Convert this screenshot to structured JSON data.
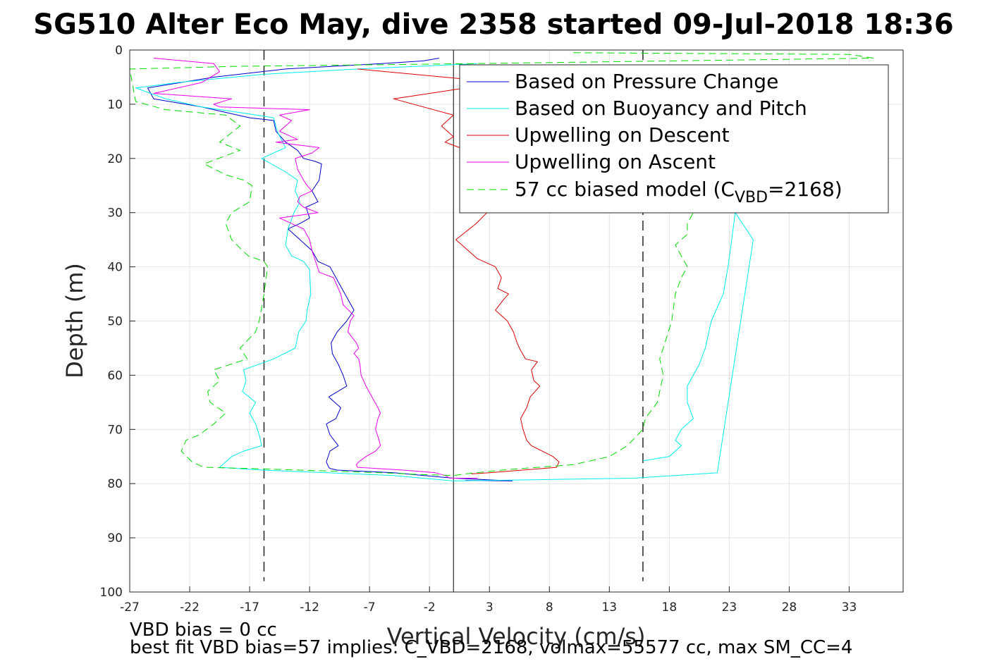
{
  "chart_data": {
    "type": "line",
    "title": "SG510 Alter Eco May, dive 2358 started 09-Jul-2018 18:36",
    "xlabel": "Vertical Velocity (cm/s)",
    "ylabel": "Depth (m)",
    "xlim": [
      -27,
      37.5
    ],
    "ylim": [
      0,
      100
    ],
    "y_reversed": true,
    "grid": true,
    "xticks": [
      -27,
      -22,
      -17,
      -12,
      -7,
      -2,
      3,
      8,
      13,
      18,
      23,
      28,
      33
    ],
    "yticks": [
      0,
      10,
      20,
      30,
      40,
      50,
      60,
      70,
      80,
      90,
      100
    ],
    "legend_position": "top-right",
    "zero_line_x": 0,
    "reference_lines_x": [
      -15.8,
      15.8
    ],
    "series": [
      {
        "name": "Based on Pressure Change",
        "color": "#0000cc",
        "dash": "solid",
        "x": [
          -1.2,
          -2.5,
          -6,
          -14,
          -20,
          -25.5,
          -25,
          -21,
          -17,
          -15,
          -14.8,
          -14,
          -13,
          -12.5,
          -11.6,
          -11,
          -11.2,
          -11.8,
          -11.3,
          -12.3,
          -12,
          -12.8,
          -13.8,
          -12.8,
          -11.8,
          -11.3,
          -10.3,
          -9.8,
          -9.3,
          -8.8,
          -8.3,
          -8.9,
          -9.7,
          -10.2,
          -10.1,
          -9.6,
          -9.2,
          -8.9,
          -10.4,
          -9.4,
          -9.8,
          -10.6,
          -10.3,
          -9.6,
          -10.3,
          -10.6,
          -10.4,
          -10.3,
          -9.7,
          -5,
          0,
          4.9,
          1
        ],
        "y": [
          1.5,
          2,
          2.5,
          3.5,
          5,
          7,
          9,
          10.5,
          12.5,
          13,
          15,
          17,
          18.5,
          20,
          20.5,
          21,
          24,
          26,
          28,
          29,
          31,
          32,
          33,
          35,
          37,
          39,
          40,
          42,
          44,
          46,
          48,
          50,
          52,
          54,
          56,
          58,
          60,
          62,
          64,
          66,
          68,
          69,
          71,
          73,
          74,
          76,
          77,
          77.2,
          77.5,
          78,
          79,
          79.5,
          79.4
        ]
      },
      {
        "name": "Based on Buoyancy and Pitch",
        "color": "#00eeee",
        "dash": "solid",
        "x": [
          2,
          -8,
          -16,
          -23,
          -26.5,
          -24,
          -21,
          -17,
          -15,
          -14.7,
          -14,
          -16,
          -14,
          -13,
          -13.2,
          -12.8,
          -13.3,
          -13.8,
          -14,
          -13.5,
          -12.5,
          -12,
          -11.9,
          -12.2,
          -12.3,
          -12.9,
          -13.2,
          -15,
          -17.5,
          -17.3,
          -17.6,
          -16.5,
          -17,
          -16.5,
          -16.2,
          -16,
          -17.5,
          -18.5,
          -19.5,
          -16,
          -5,
          0,
          15,
          22,
          25,
          23.5,
          22.9,
          22.5,
          21.5,
          21,
          20.5,
          20,
          19.5,
          19.5,
          20,
          19,
          18.5,
          19,
          18,
          15.8
        ],
        "y": [
          2.5,
          3.5,
          4.5,
          6,
          7,
          9,
          10.5,
          11.8,
          12.5,
          15,
          18,
          20,
          22.5,
          24,
          26,
          28,
          30,
          33,
          36,
          38,
          39,
          40.5,
          45,
          48,
          50,
          52,
          55,
          57,
          59,
          61,
          63,
          65,
          67,
          69,
          71,
          73,
          74,
          75,
          77,
          77.5,
          78.5,
          79.5,
          79,
          78,
          35,
          30,
          40,
          45,
          50,
          55,
          58,
          60,
          62,
          65,
          68,
          70,
          72,
          73,
          75,
          75.8
        ]
      },
      {
        "name": "Upwelling on Descent",
        "color": "#dd0000",
        "dash": "solid",
        "x": [
          -8,
          4,
          -5,
          0,
          -1,
          0,
          -0.7,
          0.5,
          2,
          1.5,
          2.3,
          2.8,
          1.9,
          0.2,
          2,
          3.5,
          4,
          3.7,
          4.6,
          4.2,
          3.5,
          4.5,
          5,
          5.3,
          5.5,
          6,
          7,
          6.5,
          6.7,
          7.2,
          6.4,
          6.1,
          5.6,
          5.8,
          6.1,
          6.5,
          7.4,
          8.3,
          8.8,
          8.6,
          3,
          1.5
        ],
        "y": [
          3.5,
          6,
          9,
          12,
          14,
          16,
          17,
          18,
          20,
          25,
          28,
          30,
          32,
          35,
          38.5,
          40,
          42,
          44,
          45,
          46,
          48,
          50,
          52,
          54,
          55,
          57,
          57.5,
          59,
          61,
          62,
          64,
          66,
          68,
          70,
          72,
          73,
          74,
          75,
          76,
          77,
          78,
          78.2
        ]
      },
      {
        "name": "Upwelling on Ascent",
        "color": "#ee00ee",
        "dash": "solid",
        "x": [
          -25,
          -20,
          -19.5,
          -21,
          -25,
          -18.5,
          -20,
          -19.5,
          -12,
          -14.5,
          -13.5,
          -14.5,
          -13,
          -14.8,
          -13,
          -11.2,
          -11.8,
          -13.2,
          -13,
          -12.5,
          -12.2,
          -11.8,
          -12.8,
          -13,
          -12.5,
          -11.3,
          -14.5,
          -12.5,
          -12,
          -11.8,
          -11.5,
          -11.2,
          -10,
          -9.8,
          -9.4,
          -9.2,
          -8.3,
          -8.6,
          -8.8,
          -8.1,
          -7.9,
          -8.3,
          -7.9,
          -7.8,
          -7.7,
          -7.3,
          -6.8,
          -6.3,
          -6.1,
          -6.3,
          -6.5,
          -6.2,
          -6.1,
          -6.5,
          -7.3,
          -7.9,
          -8.1,
          -8,
          -4.2,
          -1.5,
          -0.7,
          -0.3,
          2,
          1.8
        ],
        "y": [
          1.5,
          2.5,
          4,
          6,
          8,
          9,
          10,
          10.5,
          11,
          12,
          13,
          15,
          16.5,
          17,
          17.5,
          18,
          19,
          20,
          22,
          24,
          25,
          26,
          27,
          28,
          29,
          30,
          31,
          33,
          35,
          37,
          39,
          41,
          42,
          43,
          45,
          47,
          49,
          50,
          52,
          54,
          55,
          56,
          57,
          58,
          60,
          62,
          64,
          66,
          67,
          68,
          70,
          72,
          73,
          74,
          75,
          76,
          76.5,
          77,
          77.5,
          78,
          78.5,
          79,
          79,
          79
        ]
      },
      {
        "name": "57 cc biased model (C_VBD=2168)",
        "color": "#00dd00",
        "dash": "dashed",
        "x": [
          10,
          33,
          35,
          2,
          -18,
          -27,
          -26.5,
          -24,
          -19,
          -17.8,
          -19.5,
          -17.8,
          -20.8,
          -19,
          -17.5,
          -16.8,
          -17,
          -18.5,
          -19,
          -18.5,
          -17.6,
          -17.1,
          -15.8,
          -15.5,
          -15.8,
          -16.2,
          -16.5,
          -17.8,
          -17.2,
          -20,
          -19.5,
          -20.5,
          -20.3,
          -19,
          -20,
          -21.2,
          -22.3,
          -22.7,
          -21.8,
          -20.8,
          -17,
          -6,
          -3,
          0,
          1,
          4,
          7,
          10,
          13,
          14.5,
          15.8,
          16,
          17,
          17.5,
          17.2,
          17.5,
          18.2,
          18.5,
          19,
          19.5,
          18.5,
          19,
          19.5,
          19.5,
          20
        ],
        "y": [
          0.5,
          0.8,
          1.5,
          2.5,
          3,
          3.5,
          9.5,
          11,
          12,
          14,
          17,
          18.5,
          21,
          23,
          24,
          25,
          28,
          30,
          32,
          35,
          37,
          38,
          39,
          40,
          45,
          50,
          52,
          55,
          57,
          59,
          61,
          63,
          65,
          67,
          69,
          71,
          72,
          74,
          76,
          77,
          77.2,
          78,
          78.3,
          78.5,
          78.2,
          77.5,
          77,
          76.5,
          75,
          73,
          70,
          68,
          65,
          60,
          57,
          55,
          50,
          45,
          42,
          40,
          36,
          35,
          34,
          32,
          30
        ]
      }
    ]
  },
  "legend": {
    "entries": [
      "Based on Pressure Change",
      "Based on Buoyancy and Pitch",
      "Upwelling on Descent",
      "Upwelling on Ascent"
    ],
    "model_prefix": "57 cc biased model (C",
    "model_subscript": "VBD",
    "model_suffix": "=2168)"
  },
  "footer": {
    "line1": "VBD bias = 0 cc",
    "line2": "best fit VBD bias=57 implies: C_VBD=2168, volmax=55577 cc, max SM_CC=4"
  }
}
